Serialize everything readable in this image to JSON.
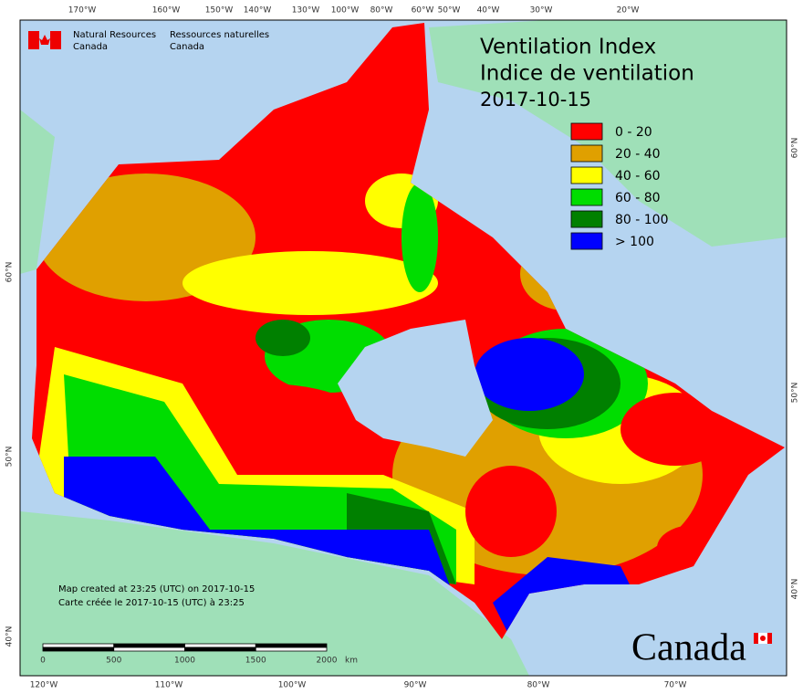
{
  "agency": {
    "english": [
      "Natural Resources",
      "Canada"
    ],
    "french": [
      "Ressources naturelles",
      "Canada"
    ]
  },
  "title": [
    "Ventilation Index",
    "Indice de ventilation",
    "2017-10-15"
  ],
  "legend": [
    {
      "label": "0 - 20",
      "color": "#ff0000"
    },
    {
      "label": "20 - 40",
      "color": "#e0a000"
    },
    {
      "label": "40 - 60",
      "color": "#ffff00"
    },
    {
      "label": "60 - 80",
      "color": "#00dd00"
    },
    {
      "label": "80 - 100",
      "color": "#008000"
    },
    {
      "label": "> 100",
      "color": "#0000ff"
    }
  ],
  "top_longitudes": [
    "170°W",
    "160°W",
    "150°W",
    "140°W",
    "130°W",
    "100°W",
    "80°W",
    "60°W",
    "50°W",
    "40°W",
    "30°W",
    "20°W"
  ],
  "bottom_longitudes": [
    "120°W",
    "110°W",
    "100°W",
    "90°W",
    "80°W",
    "70°W"
  ],
  "left_latitudes": [
    "60°N",
    "50°N",
    "40°N"
  ],
  "right_latitudes": [
    "60°N",
    "50°N",
    "40°N"
  ],
  "scale_bar": {
    "labels": [
      "0",
      "500",
      "1000",
      "1500",
      "2000"
    ],
    "unit": "km"
  },
  "credits": [
    "Map created at 23:25 (UTC) on 2017-10-15",
    "Carte créée le 2017-10-15 (UTC) à 23:25"
  ],
  "wordmark": "Canada"
}
